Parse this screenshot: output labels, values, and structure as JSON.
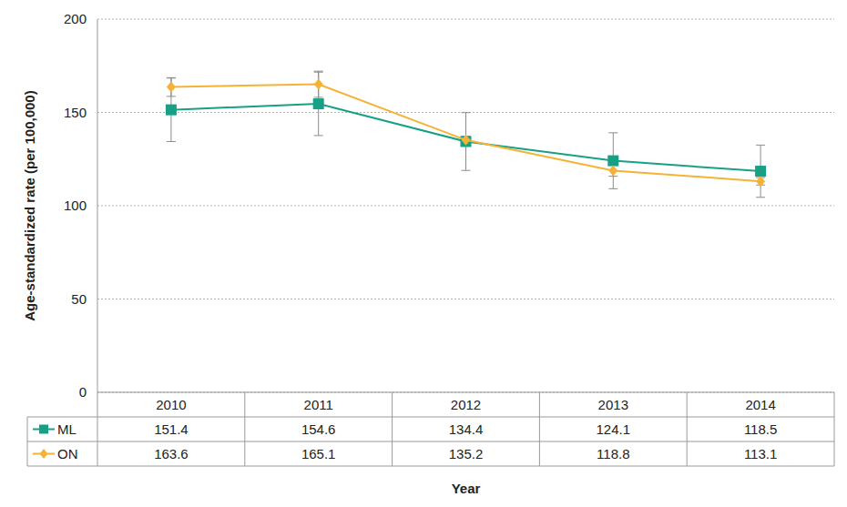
{
  "chart_data": {
    "type": "line",
    "x_label": "Year",
    "y_label": "Age-standardized rate (per 100,000)",
    "categories": [
      "2010",
      "2011",
      "2012",
      "2013",
      "2014"
    ],
    "series": [
      {
        "name": "ML",
        "color": "#16a085",
        "marker": "square",
        "values": [
          151.4,
          154.6,
          134.4,
          124.1,
          118.5
        ],
        "errors": [
          17,
          17,
          15.5,
          15,
          14
        ]
      },
      {
        "name": "ON",
        "color": "#f5b335",
        "marker": "diamond",
        "values": [
          163.6,
          165.1,
          135.2,
          118.8,
          113.1
        ],
        "errors": [
          5,
          7,
          2,
          3,
          2
        ]
      }
    ],
    "ylim": [
      0,
      200
    ],
    "yticks": [
      0,
      50,
      100,
      150,
      200
    ],
    "grid": true
  }
}
